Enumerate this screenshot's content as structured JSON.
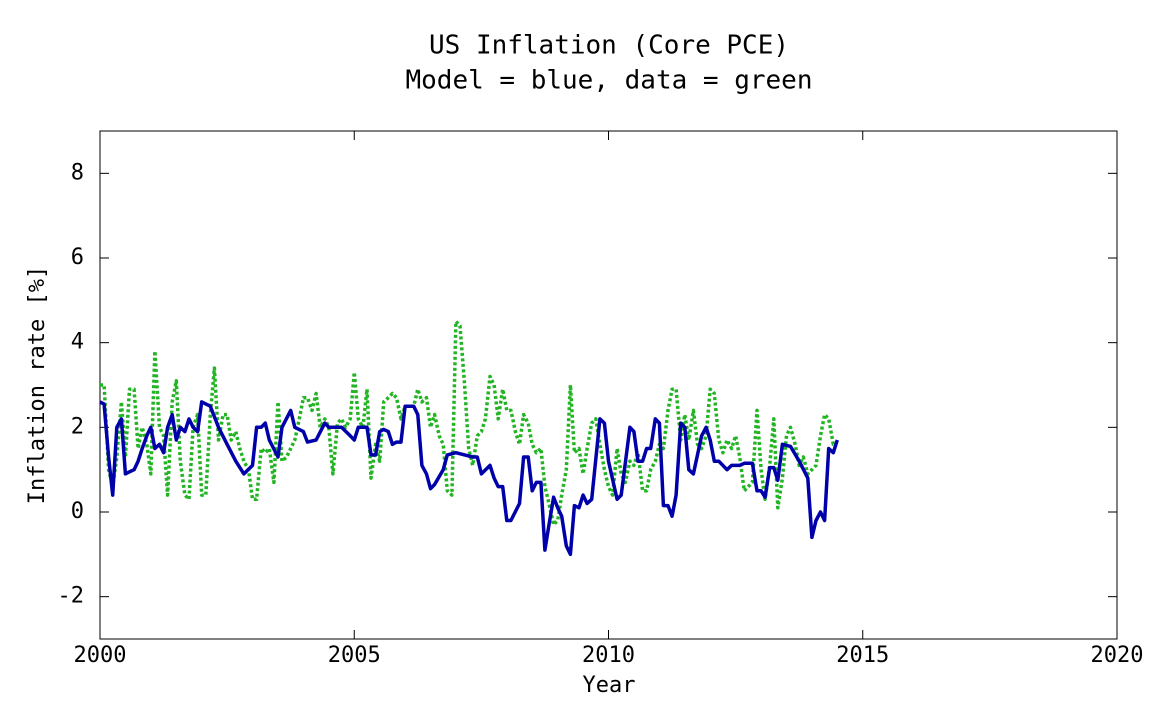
{
  "chart_data": {
    "type": "line",
    "title": "US Inflation (Core PCE)",
    "subtitle": "Model = blue, data = green",
    "xlabel": "Year",
    "ylabel": "Inflation rate [%]",
    "xlim": [
      2000,
      2020
    ],
    "xticks": [
      2000,
      2005,
      2010,
      2015,
      2020
    ],
    "ylim": [
      -3,
      9
    ],
    "yticks": [
      -2,
      0,
      2,
      4,
      6,
      8
    ],
    "series": [
      {
        "color": "#0000aa",
        "line_style": "solid",
        "x": [
          2000.0,
          2000.08,
          2000.17,
          2000.25,
          2000.33,
          2000.42,
          2000.5,
          2000.58,
          2000.67,
          2000.75,
          2000.83,
          2000.92,
          2001.0,
          2001.08,
          2001.17,
          2001.25,
          2001.33,
          2001.42,
          2001.5,
          2001.58,
          2001.67,
          2001.75,
          2001.83,
          2001.92,
          2002.0,
          2002.17,
          2002.33,
          2002.5,
          2002.67,
          2002.83,
          2003.0,
          2003.08,
          2003.17,
          2003.25,
          2003.33,
          2003.5,
          2003.58,
          2003.75,
          2003.83,
          2004.0,
          2004.08,
          2004.25,
          2004.42,
          2004.5,
          2004.75,
          2004.92,
          2005.0,
          2005.08,
          2005.25,
          2005.33,
          2005.42,
          2005.5,
          2005.58,
          2005.67,
          2005.75,
          2005.83,
          2005.92,
          2006.0,
          2006.17,
          2006.25,
          2006.33,
          2006.42,
          2006.5,
          2006.58,
          2006.75,
          2006.83,
          2007.0,
          2007.17,
          2007.33,
          2007.42,
          2007.5,
          2007.67,
          2007.75,
          2007.83,
          2007.92,
          2008.0,
          2008.08,
          2008.25,
          2008.33,
          2008.42,
          2008.5,
          2008.58,
          2008.67,
          2008.75,
          2008.83,
          2008.92,
          2009.0,
          2009.08,
          2009.17,
          2009.25,
          2009.33,
          2009.42,
          2009.5,
          2009.58,
          2009.67,
          2009.83,
          2009.92,
          2010.0,
          2010.17,
          2010.25,
          2010.42,
          2010.5,
          2010.58,
          2010.67,
          2010.75,
          2010.83,
          2010.92,
          2011.0,
          2011.08,
          2011.17,
          2011.25,
          2011.33,
          2011.42,
          2011.5,
          2011.58,
          2011.67,
          2011.83,
          2011.92,
          2012.0,
          2012.08,
          2012.17,
          2012.33,
          2012.42,
          2012.58,
          2012.67,
          2012.83,
          2012.92,
          2013.0,
          2013.08,
          2013.17,
          2013.25,
          2013.33,
          2013.42,
          2013.58,
          2013.75,
          2013.92,
          2014.0,
          2014.08,
          2014.17,
          2014.25,
          2014.33,
          2014.42,
          2014.5
        ],
        "values": [
          2.6,
          2.55,
          1.3,
          0.4,
          2.0,
          2.2,
          0.9,
          0.95,
          1.0,
          1.2,
          1.5,
          1.8,
          2.0,
          1.5,
          1.6,
          1.4,
          2.0,
          2.3,
          1.7,
          2.0,
          1.9,
          2.2,
          2.0,
          1.9,
          2.6,
          2.5,
          2.0,
          1.6,
          1.2,
          0.9,
          1.1,
          2.0,
          2.0,
          2.1,
          1.7,
          1.3,
          2.0,
          2.4,
          2.0,
          1.9,
          1.65,
          1.7,
          2.1,
          2.0,
          2.0,
          1.8,
          1.7,
          2.0,
          2.0,
          1.35,
          1.35,
          1.9,
          1.95,
          1.9,
          1.6,
          1.65,
          1.65,
          2.5,
          2.5,
          2.3,
          1.1,
          0.9,
          0.55,
          0.65,
          1.0,
          1.35,
          1.4,
          1.35,
          1.3,
          1.3,
          0.9,
          1.1,
          0.8,
          0.6,
          0.6,
          -0.2,
          -0.2,
          0.2,
          1.3,
          1.3,
          0.5,
          0.7,
          0.7,
          -0.9,
          -0.3,
          0.35,
          0.1,
          -0.1,
          -0.8,
          -1.0,
          0.15,
          0.1,
          0.4,
          0.2,
          0.3,
          2.2,
          2.1,
          1.2,
          0.3,
          0.4,
          2.0,
          1.9,
          1.2,
          1.2,
          1.5,
          1.5,
          2.2,
          2.1,
          0.15,
          0.15,
          -0.1,
          0.4,
          2.1,
          2.0,
          1.0,
          0.9,
          1.8,
          2.0,
          1.7,
          1.2,
          1.2,
          1.0,
          1.1,
          1.1,
          1.15,
          1.15,
          0.5,
          0.5,
          0.35,
          1.05,
          1.05,
          0.75,
          1.6,
          1.55,
          1.2,
          0.8,
          -0.6,
          -0.2,
          0.0,
          -0.2,
          1.5,
          1.4,
          1.7
        ]
      },
      {
        "color": "#22b422",
        "line_style": "dotted",
        "x": [
          2000.0,
          2000.08,
          2000.17,
          2000.25,
          2000.33,
          2000.42,
          2000.5,
          2000.58,
          2000.67,
          2000.75,
          2000.83,
          2000.92,
          2001.0,
          2001.08,
          2001.17,
          2001.25,
          2001.33,
          2001.42,
          2001.5,
          2001.58,
          2001.67,
          2001.75,
          2001.83,
          2001.92,
          2002.0,
          2002.08,
          2002.17,
          2002.25,
          2002.33,
          2002.42,
          2002.5,
          2002.58,
          2002.67,
          2002.75,
          2002.83,
          2002.92,
          2003.0,
          2003.08,
          2003.17,
          2003.25,
          2003.33,
          2003.42,
          2003.5,
          2003.58,
          2003.67,
          2003.75,
          2003.83,
          2003.92,
          2004.0,
          2004.08,
          2004.17,
          2004.25,
          2004.33,
          2004.42,
          2004.5,
          2004.58,
          2004.67,
          2004.75,
          2004.83,
          2004.92,
          2005.0,
          2005.08,
          2005.17,
          2005.25,
          2005.33,
          2005.42,
          2005.5,
          2005.58,
          2005.67,
          2005.75,
          2005.83,
          2005.92,
          2006.0,
          2006.17,
          2006.25,
          2006.33,
          2006.42,
          2006.5,
          2006.58,
          2006.67,
          2006.75,
          2006.83,
          2006.92,
          2007.0,
          2007.08,
          2007.17,
          2007.25,
          2007.33,
          2007.42,
          2007.5,
          2007.58,
          2007.67,
          2007.75,
          2007.83,
          2007.92,
          2008.0,
          2008.08,
          2008.17,
          2008.25,
          2008.33,
          2008.42,
          2008.5,
          2008.58,
          2008.67,
          2008.75,
          2008.83,
          2008.92,
          2009.0,
          2009.08,
          2009.17,
          2009.25,
          2009.33,
          2009.42,
          2009.5,
          2009.58,
          2009.67,
          2009.75,
          2009.83,
          2009.92,
          2010.0,
          2010.08,
          2010.17,
          2010.25,
          2010.33,
          2010.42,
          2010.5,
          2010.58,
          2010.67,
          2010.75,
          2010.83,
          2010.92,
          2011.0,
          2011.08,
          2011.17,
          2011.25,
          2011.33,
          2011.42,
          2011.5,
          2011.58,
          2011.67,
          2011.75,
          2011.83,
          2011.92,
          2012.0,
          2012.08,
          2012.17,
          2012.25,
          2012.33,
          2012.42,
          2012.5,
          2012.58,
          2012.67,
          2012.75,
          2012.83,
          2012.92,
          2013.0,
          2013.08,
          2013.17,
          2013.25,
          2013.33,
          2013.42,
          2013.5,
          2013.58,
          2013.67,
          2013.75,
          2013.83,
          2013.92,
          2014.0,
          2014.08,
          2014.17,
          2014.25,
          2014.33,
          2014.42,
          2014.5
        ],
        "values": [
          3.0,
          3.0,
          1.0,
          0.6,
          1.3,
          2.6,
          1.3,
          2.9,
          2.9,
          1.5,
          2.0,
          1.6,
          0.9,
          3.8,
          2.0,
          1.8,
          0.4,
          2.6,
          3.1,
          1.2,
          0.4,
          0.3,
          2.0,
          2.3,
          0.4,
          0.4,
          2.3,
          3.4,
          1.7,
          2.3,
          2.3,
          1.7,
          1.9,
          1.5,
          1.2,
          1.0,
          0.3,
          0.3,
          1.5,
          1.4,
          1.5,
          0.7,
          2.6,
          1.2,
          1.3,
          1.5,
          1.7,
          2.2,
          2.7,
          2.7,
          2.4,
          2.8,
          2.0,
          2.2,
          2.0,
          0.9,
          2.1,
          2.2,
          2.0,
          2.2,
          3.3,
          2.2,
          2.0,
          2.9,
          0.8,
          1.6,
          1.2,
          2.6,
          2.7,
          2.8,
          2.7,
          2.2,
          2.5,
          2.5,
          2.9,
          2.6,
          2.7,
          2.0,
          2.3,
          1.8,
          1.6,
          0.5,
          0.4,
          4.5,
          4.4,
          3.0,
          1.5,
          1.1,
          1.8,
          1.9,
          2.2,
          3.2,
          3.0,
          2.2,
          2.9,
          2.4,
          2.4,
          1.9,
          1.6,
          2.3,
          2.1,
          1.6,
          1.4,
          1.5,
          0.6,
          0.2,
          -0.3,
          -0.2,
          0.4,
          1.0,
          3.0,
          1.4,
          1.5,
          0.9,
          1.5,
          2.1,
          2.2,
          1.6,
          1.0,
          0.6,
          0.4,
          1.5,
          0.9,
          0.7,
          1.2,
          1.1,
          1.4,
          0.5,
          0.5,
          1.0,
          1.2,
          1.6,
          1.5,
          2.4,
          2.9,
          2.9,
          1.7,
          2.3,
          1.7,
          2.4,
          1.6,
          1.5,
          1.8,
          2.9,
          2.8,
          1.7,
          1.4,
          1.7,
          1.5,
          1.8,
          1.3,
          0.5,
          0.6,
          0.7,
          2.4,
          1.0,
          0.3,
          1.1,
          2.2,
          0.1,
          0.8,
          1.8,
          2.0,
          1.6,
          1.1,
          1.3,
          0.9,
          1.0,
          1.1,
          1.8,
          2.3,
          2.2,
          1.6,
          1.6
        ]
      }
    ]
  }
}
